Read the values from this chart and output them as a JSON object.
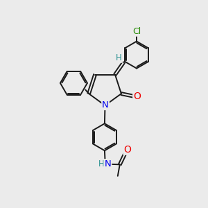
{
  "background_color": "#ebebeb",
  "bond_color": "#1a1a1a",
  "atom_colors": {
    "N": "#0000ee",
    "O": "#ee0000",
    "Cl": "#228800",
    "H_label": "#2a9090",
    "C": "#1a1a1a"
  },
  "font_size_atoms": 8.5,
  "figsize": [
    3.0,
    3.0
  ],
  "dpi": 100
}
